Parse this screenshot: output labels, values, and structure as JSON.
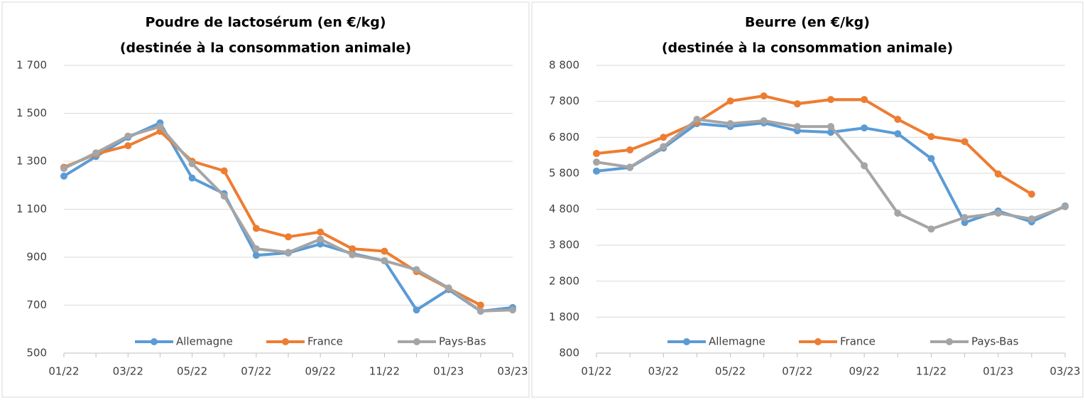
{
  "chart_data": [
    {
      "type": "line",
      "title": "Poudre de lactosérum  (en €/kg)",
      "subtitle": "(destinée à la consommation animale)",
      "categories": [
        "01/22",
        null,
        "03/22",
        null,
        "05/22",
        null,
        "07/22",
        null,
        "09/22",
        null,
        "11/22",
        null,
        "01/23",
        null,
        "03/23"
      ],
      "ylim": [
        500,
        1700
      ],
      "yticks": [
        {
          "value": 500,
          "label": "500"
        },
        {
          "value": 700,
          "label": "700"
        },
        {
          "value": 900,
          "label": "900"
        },
        {
          "value": 1100,
          "label": "1 100"
        },
        {
          "value": 1300,
          "label": "1 300"
        },
        {
          "value": 1500,
          "label": "1 500"
        },
        {
          "value": 1700,
          "label": "1 700"
        }
      ],
      "grid": true,
      "series": [
        {
          "name": "Allemagne",
          "color": "#5b9bd5",
          "values": [
            1238,
            1320,
            1400,
            1460,
            1230,
            1165,
            908,
            918,
            955,
            915,
            885,
            680,
            765,
            675,
            690
          ]
        },
        {
          "name": "France",
          "color": "#ed7d31",
          "values": [
            1275,
            1330,
            1365,
            1425,
            1300,
            1260,
            1020,
            985,
            1005,
            935,
            925,
            840,
            770,
            700,
            null
          ]
        },
        {
          "name": "Pays-Bas",
          "color": "#a5a5a5",
          "values": [
            1270,
            1335,
            1405,
            1445,
            1290,
            1155,
            935,
            920,
            975,
            910,
            885,
            848,
            772,
            675,
            680
          ]
        }
      ]
    },
    {
      "type": "line",
      "title": "Beurre  (en €/kg)",
      "subtitle": "(destinée à la consommation animale)",
      "categories": [
        "01/22",
        null,
        "03/22",
        null,
        "05/22",
        null,
        "07/22",
        null,
        "09/22",
        null,
        "11/22",
        null,
        "01/23",
        null,
        "03/23"
      ],
      "ylim": [
        800,
        8800
      ],
      "yticks": [
        {
          "value": 800,
          "label": "800"
        },
        {
          "value": 1800,
          "label": "1 800"
        },
        {
          "value": 2800,
          "label": "2 800"
        },
        {
          "value": 3800,
          "label": "3 800"
        },
        {
          "value": 4800,
          "label": "4 800"
        },
        {
          "value": 5800,
          "label": "5 800"
        },
        {
          "value": 6800,
          "label": "6 800"
        },
        {
          "value": 7800,
          "label": "7 800"
        },
        {
          "value": 8800,
          "label": "8 800"
        }
      ],
      "grid": true,
      "series": [
        {
          "name": "Allemagne",
          "color": "#5b9bd5",
          "values": [
            5860,
            5960,
            6500,
            7180,
            7100,
            7200,
            6980,
            6940,
            7060,
            6900,
            6210,
            4430,
            4750,
            4450,
            4890
          ]
        },
        {
          "name": "France",
          "color": "#ed7d31",
          "values": [
            6350,
            6450,
            6800,
            7220,
            7810,
            7950,
            7730,
            7850,
            7850,
            7300,
            6820,
            6680,
            5780,
            5220,
            null
          ]
        },
        {
          "name": "Pays-Bas",
          "color": "#a5a5a5",
          "values": [
            6110,
            5970,
            6540,
            7300,
            7180,
            7260,
            7100,
            7100,
            6010,
            4690,
            4250,
            4570,
            4690,
            4530,
            4870
          ]
        }
      ]
    }
  ]
}
